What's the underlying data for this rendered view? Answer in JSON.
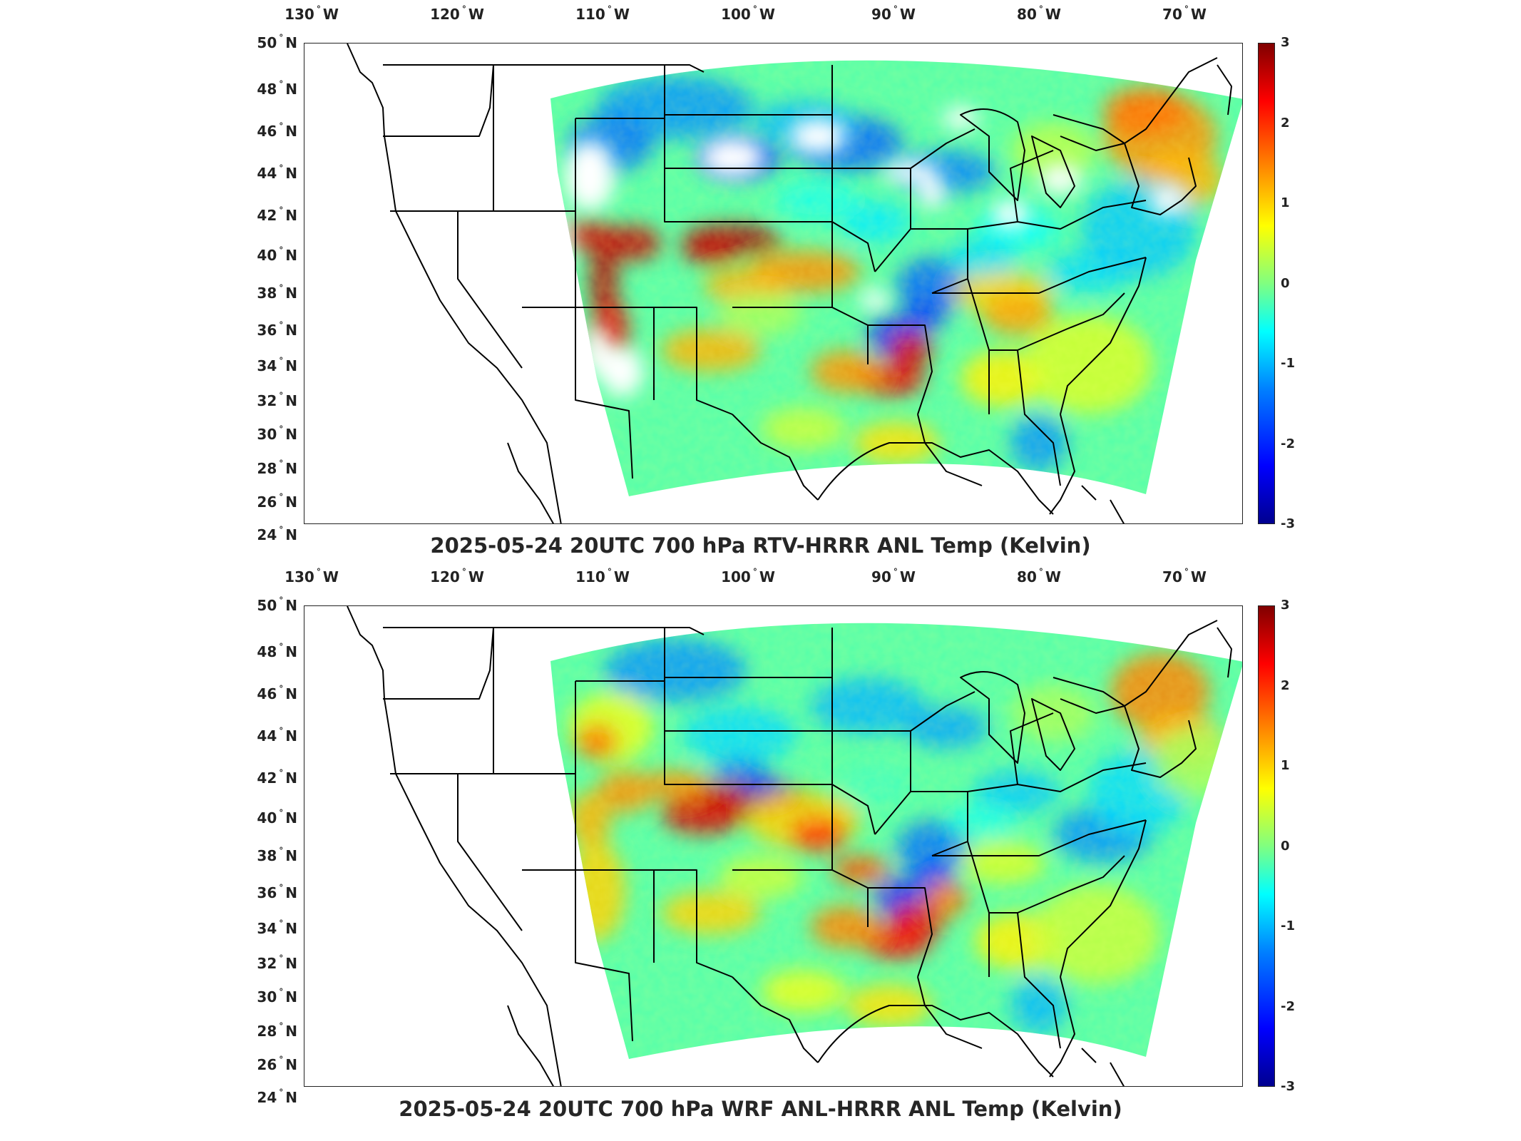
{
  "figure": {
    "panels": [
      {
        "id": "top",
        "caption": "2025-05-24 20UTC 700 hPa RTV-HRRR ANL Temp (Kelvin)"
      },
      {
        "id": "bottom",
        "caption": "2025-05-24 20UTC 700 hPa WRF ANL-HRRR ANL Temp (Kelvin)"
      }
    ],
    "longitude_ticks": [
      "130",
      "120",
      "110",
      "100",
      "90",
      "80",
      "70"
    ],
    "longitude_hemisphere": "W",
    "latitude_ticks": [
      "50",
      "48",
      "46",
      "44",
      "42",
      "40",
      "38",
      "36",
      "34",
      "32",
      "30",
      "28",
      "26",
      "24"
    ],
    "latitude_hemisphere": "N",
    "colorbar": {
      "ticks": [
        "3",
        "2",
        "1",
        "0",
        "-1",
        "-2",
        "-3"
      ],
      "range": [
        -3,
        3
      ],
      "colormap": "jet"
    },
    "colors": {
      "background": "#ffffff",
      "outline": "#000000",
      "field_dominant": "#7fe0c8"
    }
  }
}
